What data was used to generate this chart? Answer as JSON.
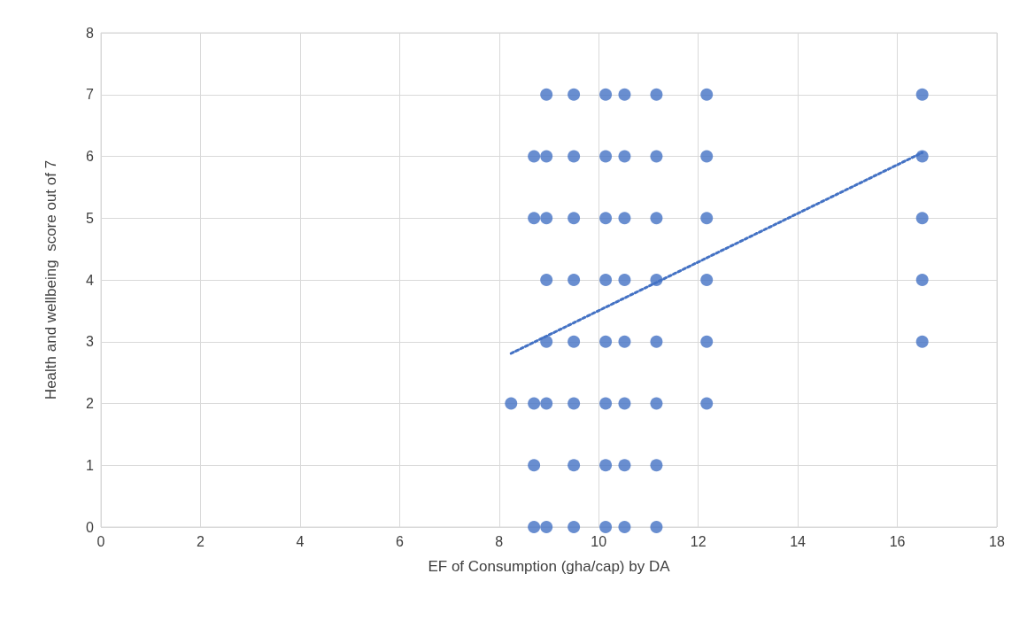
{
  "chart_data": {
    "type": "scatter",
    "xlabel": "EF of Consumption (gha/cap) by DA",
    "ylabel": "Health and wellbeing  score out of 7",
    "xlim": [
      0,
      18
    ],
    "xticks": [
      0,
      2,
      4,
      6,
      8,
      10,
      12,
      14,
      16,
      18
    ],
    "ylim": [
      0,
      8
    ],
    "yticks": [
      0,
      1,
      2,
      3,
      4,
      5,
      6,
      7,
      8
    ],
    "grid": true,
    "marker": "circle",
    "series": [
      {
        "color": "#4472c4",
        "x": [
          8.24,
          8.7,
          8.7,
          8.7,
          8.7,
          8.7,
          8.95,
          8.95,
          8.95,
          8.95,
          8.95,
          8.95,
          8.95,
          9.5,
          9.5,
          9.5,
          9.5,
          9.5,
          9.5,
          9.5,
          9.5,
          10.14,
          10.14,
          10.14,
          10.14,
          10.14,
          10.14,
          10.14,
          10.14,
          10.52,
          10.52,
          10.52,
          10.52,
          10.52,
          10.52,
          10.52,
          10.52,
          11.16,
          11.16,
          11.16,
          11.16,
          11.16,
          11.16,
          11.16,
          11.16,
          12.17,
          12.17,
          12.17,
          12.17,
          12.17,
          12.17,
          16.5,
          16.5,
          16.5,
          16.5,
          16.5
        ],
        "values": [
          2,
          0,
          1,
          2,
          5,
          6,
          0,
          2,
          3,
          4,
          5,
          6,
          7,
          0,
          1,
          2,
          3,
          4,
          5,
          6,
          7,
          0,
          1,
          2,
          3,
          4,
          5,
          6,
          7,
          0,
          1,
          2,
          3,
          4,
          5,
          6,
          7,
          0,
          1,
          2,
          3,
          4,
          5,
          6,
          7,
          2,
          3,
          4,
          5,
          6,
          7,
          3,
          4,
          5,
          6,
          7
        ]
      },
      {
        "type": "line",
        "color": "#4472c4",
        "line_style": "dotted",
        "marker": "none",
        "x": [
          8.24,
          16.5
        ],
        "values": [
          2.81,
          6.06
        ]
      }
    ]
  }
}
